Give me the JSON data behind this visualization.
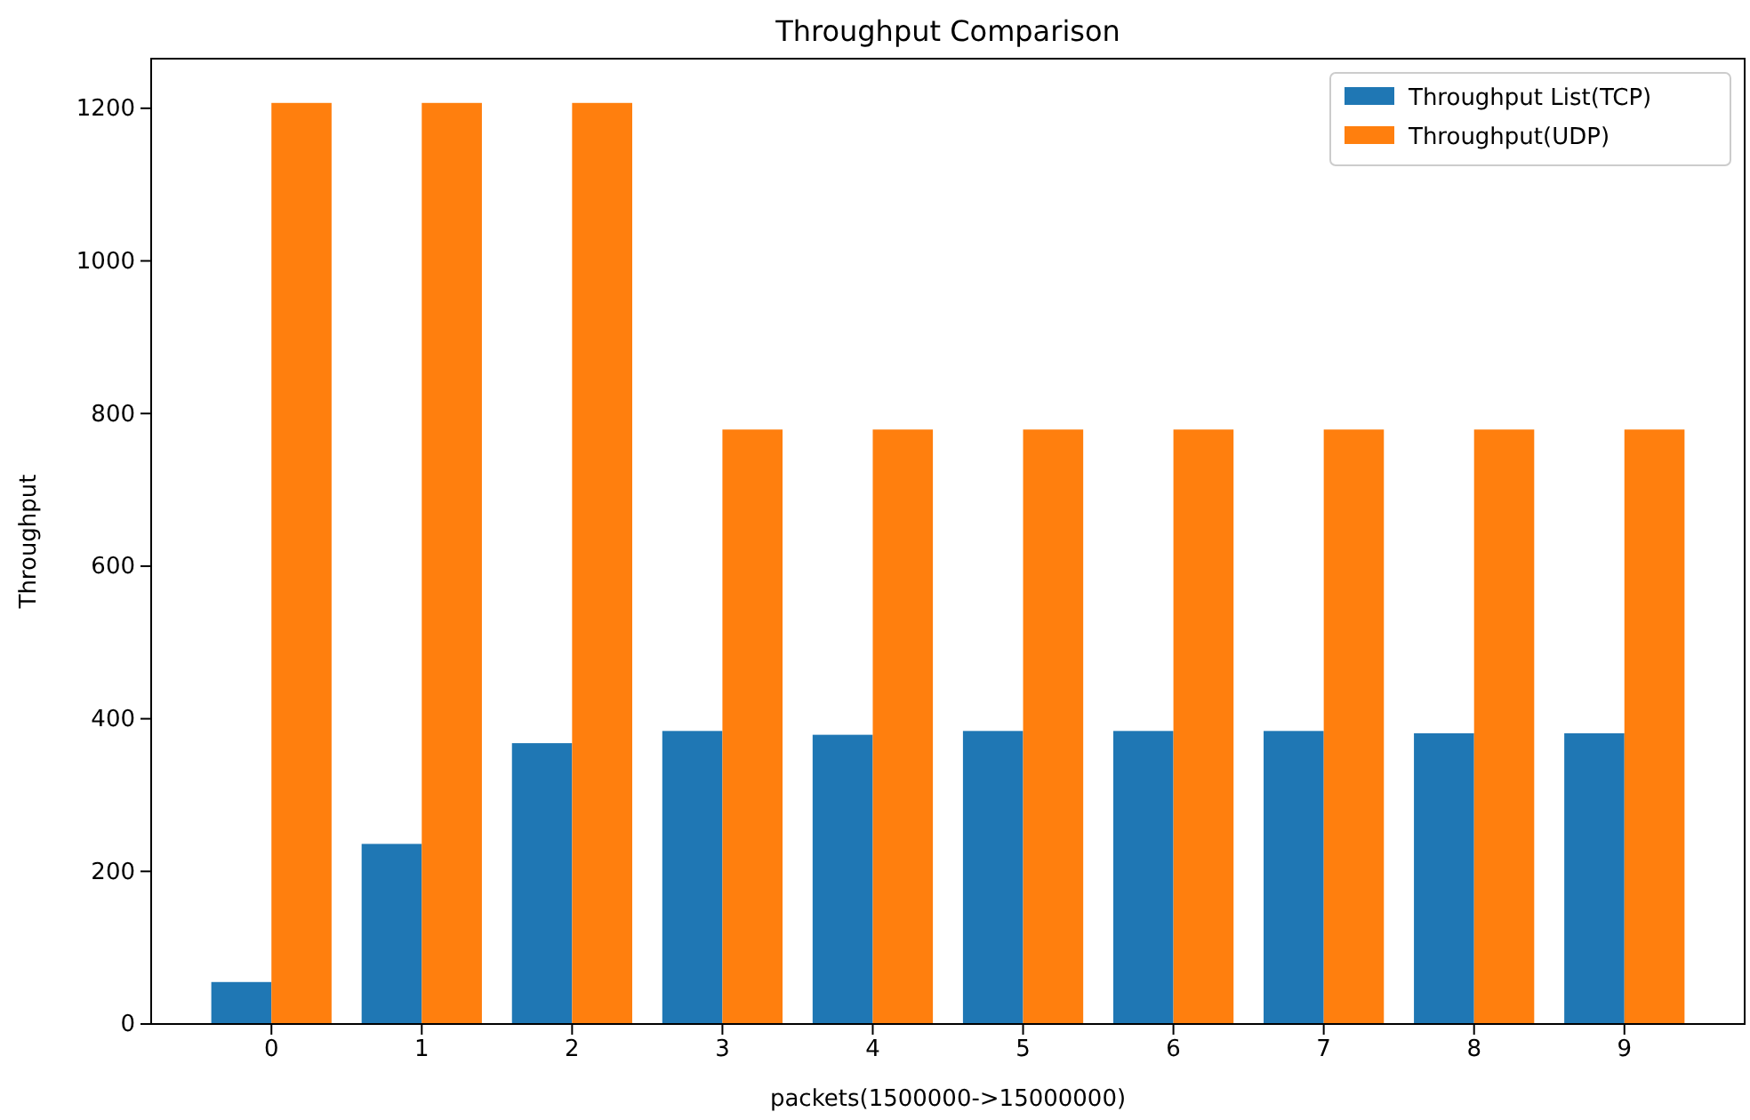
{
  "chart_data": {
    "type": "bar",
    "title": "Throughput Comparison",
    "xlabel": "packets(1500000->15000000)",
    "ylabel": "Throughput",
    "categories": [
      "0",
      "1",
      "2",
      "3",
      "4",
      "5",
      "6",
      "7",
      "8",
      "9"
    ],
    "series": [
      {
        "name": "Throughput List(TCP)",
        "color": "#1f77b4",
        "values": [
          55,
          236,
          368,
          384,
          379,
          384,
          384,
          384,
          381,
          381
        ]
      },
      {
        "name": "Throughput(UDP)",
        "color": "#ff7f0e",
        "values": [
          1207,
          1207,
          1207,
          779,
          779,
          779,
          779,
          779,
          779,
          779
        ]
      }
    ],
    "ylim": [
      0,
      1265
    ],
    "yticks": [
      0,
      200,
      400,
      600,
      800,
      1000,
      1200
    ],
    "legend": "top right",
    "grid": false
  }
}
